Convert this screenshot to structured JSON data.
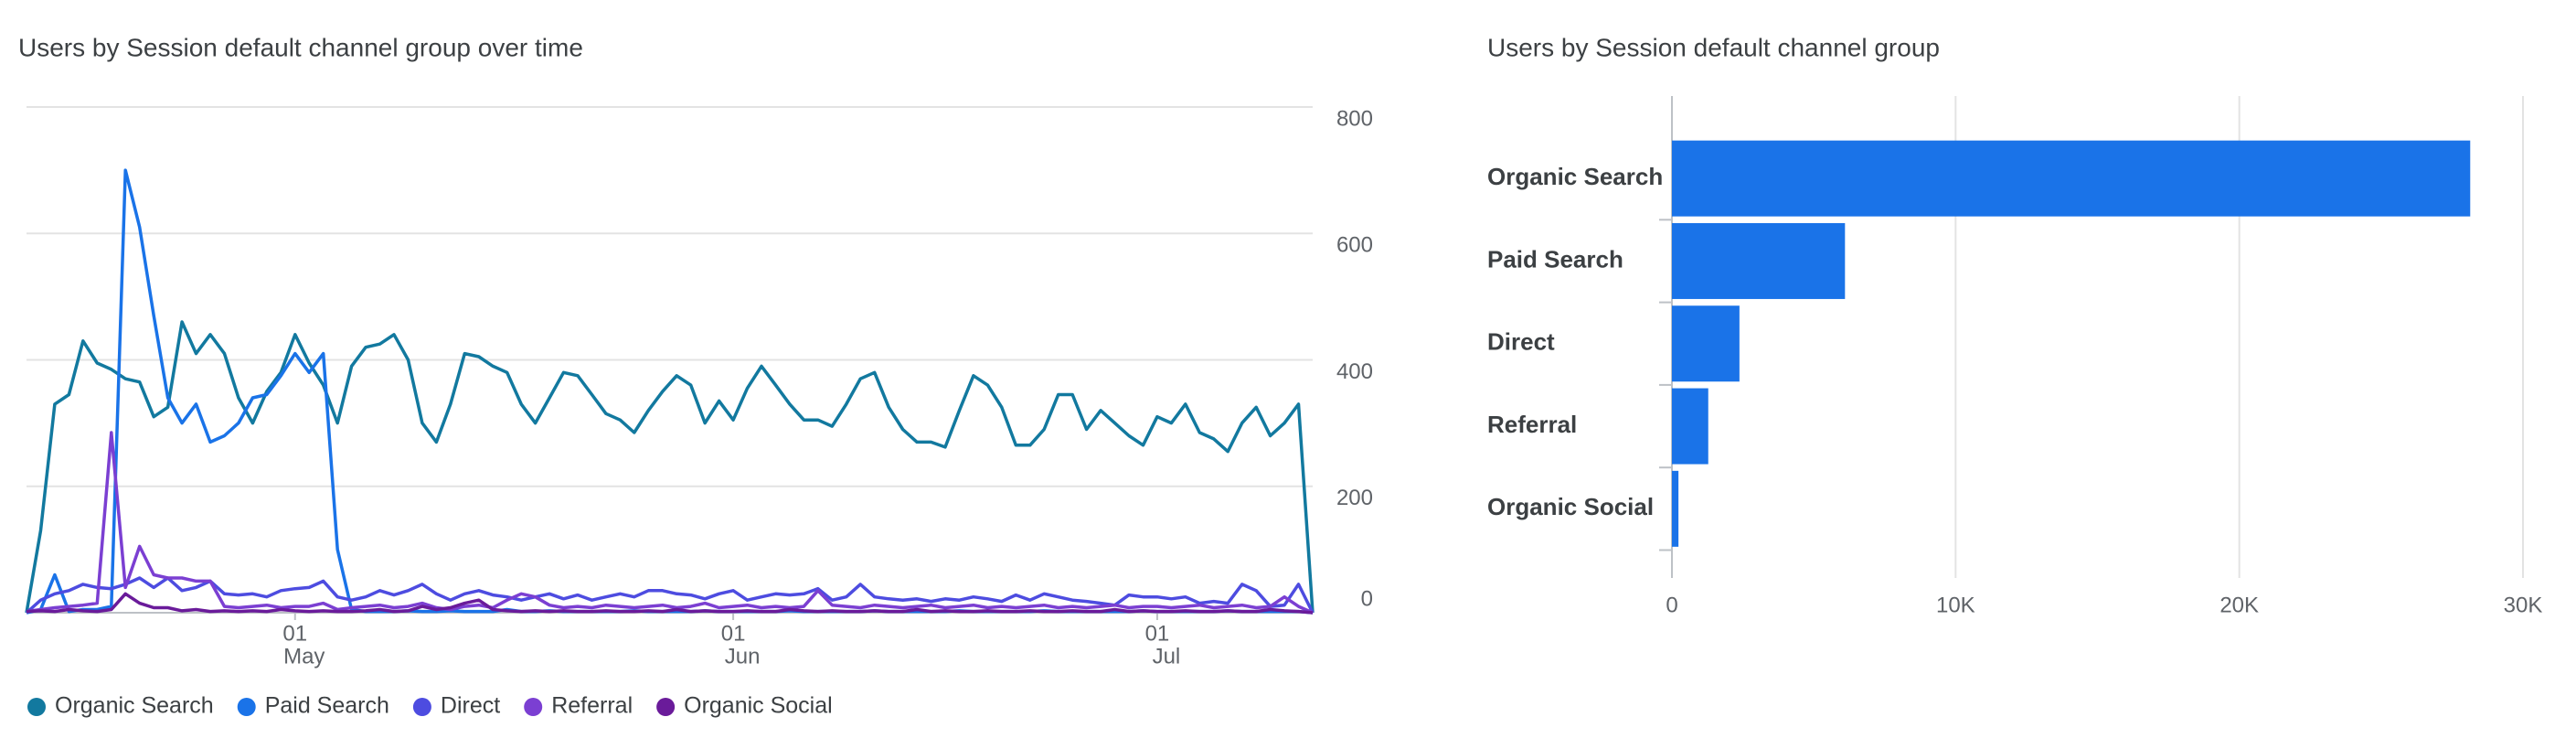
{
  "chart_data": [
    {
      "type": "line",
      "title": "Users by Session default channel group over time",
      "x": [
        0,
        1,
        2,
        3,
        4,
        5,
        6,
        7,
        8,
        9,
        10,
        11,
        12,
        13,
        14,
        15,
        16,
        17,
        18,
        19,
        20,
        21,
        22,
        23,
        24,
        25,
        26,
        27,
        28,
        29,
        30,
        31,
        32,
        33,
        34,
        35,
        36,
        37,
        38,
        39,
        40,
        41,
        42,
        43,
        44,
        45,
        46,
        47,
        48,
        49,
        50,
        51,
        52,
        53,
        54,
        55,
        56,
        57,
        58,
        59,
        60,
        61,
        62,
        63,
        64,
        65,
        66,
        67,
        68,
        69,
        70,
        71,
        72,
        73,
        74,
        75,
        76,
        77,
        78,
        79,
        80,
        81,
        82,
        83,
        84,
        85,
        86,
        87,
        88,
        89,
        90,
        91
      ],
      "xlim": [
        0,
        91
      ],
      "xticks": [
        {
          "value": 19,
          "label": "01"
        },
        {
          "value": 50,
          "label": "01"
        },
        {
          "value": 80,
          "label": "01"
        }
      ],
      "xtick_months": [
        "May",
        "Jun",
        "Jul"
      ],
      "ylim": [
        0,
        800
      ],
      "yticks": [
        0,
        200,
        400,
        600,
        800
      ],
      "grid": true,
      "series": [
        {
          "name": "Organic Search",
          "color": "#12799f",
          "values": [
            0,
            130,
            330,
            345,
            430,
            395,
            385,
            370,
            365,
            310,
            325,
            460,
            410,
            440,
            410,
            340,
            300,
            350,
            380,
            440,
            395,
            360,
            300,
            390,
            420,
            425,
            440,
            400,
            300,
            270,
            330,
            410,
            405,
            390,
            380,
            330,
            300,
            340,
            380,
            375,
            345,
            315,
            305,
            285,
            320,
            350,
            375,
            360,
            300,
            335,
            305,
            355,
            390,
            360,
            330,
            305,
            305,
            295,
            330,
            370,
            380,
            325,
            290,
            270,
            270,
            262,
            320,
            375,
            360,
            325,
            265,
            265,
            290,
            345,
            345,
            290,
            320,
            300,
            280,
            265,
            310,
            300,
            330,
            285,
            275,
            255,
            300,
            325,
            280,
            300,
            330,
            0
          ]
        },
        {
          "name": "Paid Search",
          "color": "#1a73e8",
          "values": [
            0,
            5,
            60,
            2,
            5,
            5,
            10,
            700,
            610,
            470,
            340,
            300,
            330,
            270,
            280,
            300,
            340,
            345,
            375,
            410,
            380,
            410,
            100,
            5,
            2,
            2,
            2,
            3,
            2,
            2,
            3,
            2,
            2,
            2,
            5,
            2,
            2,
            3,
            2,
            2,
            2,
            2,
            2,
            3,
            2,
            2,
            2,
            2,
            3,
            2,
            2,
            2,
            2,
            2,
            3,
            2,
            2,
            2,
            2,
            2,
            3,
            2,
            2,
            2,
            2,
            2,
            3,
            2,
            2,
            2,
            2,
            2,
            3,
            2,
            2,
            2,
            2,
            2,
            2,
            3,
            2,
            2,
            2,
            2,
            2,
            3,
            2,
            2,
            2,
            2,
            2,
            0
          ]
        },
        {
          "name": "Direct",
          "color": "#4d4ce0",
          "values": [
            0,
            20,
            30,
            35,
            45,
            40,
            38,
            45,
            55,
            40,
            55,
            35,
            40,
            50,
            30,
            28,
            30,
            25,
            35,
            38,
            40,
            50,
            25,
            20,
            25,
            35,
            28,
            35,
            45,
            30,
            20,
            30,
            35,
            28,
            25,
            20,
            25,
            30,
            22,
            28,
            20,
            25,
            30,
            25,
            35,
            35,
            30,
            28,
            22,
            30,
            35,
            20,
            25,
            30,
            28,
            30,
            38,
            20,
            25,
            45,
            25,
            22,
            20,
            22,
            18,
            22,
            20,
            25,
            22,
            18,
            28,
            20,
            30,
            25,
            20,
            18,
            15,
            12,
            28,
            25,
            25,
            22,
            25,
            15,
            18,
            15,
            45,
            35,
            10,
            12,
            45,
            0
          ]
        },
        {
          "name": "Referral",
          "color": "#7b3fd2",
          "values": [
            2,
            5,
            8,
            10,
            12,
            15,
            285,
            40,
            105,
            60,
            55,
            55,
            50,
            50,
            10,
            8,
            10,
            12,
            8,
            10,
            10,
            15,
            5,
            8,
            10,
            12,
            8,
            10,
            15,
            8,
            5,
            10,
            12,
            8,
            20,
            30,
            25,
            12,
            8,
            10,
            8,
            12,
            10,
            8,
            10,
            12,
            8,
            10,
            15,
            8,
            10,
            12,
            8,
            10,
            8,
            10,
            35,
            12,
            10,
            8,
            12,
            10,
            8,
            10,
            12,
            8,
            10,
            12,
            8,
            10,
            8,
            10,
            12,
            8,
            10,
            8,
            10,
            12,
            8,
            10,
            10,
            8,
            10,
            12,
            8,
            10,
            12,
            8,
            10,
            25,
            10,
            0
          ]
        },
        {
          "name": "Organic Social",
          "color": "#6a1b9a",
          "values": [
            2,
            3,
            2,
            5,
            3,
            2,
            5,
            30,
            15,
            8,
            8,
            3,
            5,
            2,
            3,
            2,
            3,
            2,
            5,
            3,
            2,
            3,
            2,
            2,
            3,
            5,
            2,
            3,
            10,
            5,
            8,
            15,
            20,
            5,
            3,
            2,
            3,
            2,
            3,
            2,
            2,
            3,
            2,
            2,
            3,
            2,
            5,
            2,
            3,
            2,
            2,
            3,
            2,
            2,
            5,
            3,
            2,
            3,
            2,
            2,
            3,
            2,
            2,
            5,
            2,
            3,
            2,
            2,
            3,
            2,
            2,
            3,
            2,
            2,
            3,
            2,
            2,
            5,
            2,
            3,
            2,
            2,
            3,
            2,
            2,
            3,
            2,
            2,
            5,
            3,
            2,
            0
          ]
        }
      ]
    },
    {
      "type": "bar",
      "orientation": "horizontal",
      "title": "Users by Session default channel group",
      "categories": [
        "Organic Search",
        "Paid Search",
        "Direct",
        "Referral",
        "Organic Social"
      ],
      "values": [
        28140,
        6100,
        2380,
        1280,
        230
      ],
      "color": "#1a73e8",
      "xlim": [
        0,
        30000
      ],
      "xticks": [
        0,
        {
          "value": 10000,
          "label": "10K"
        },
        {
          "value": 20000,
          "label": "20K"
        },
        {
          "value": 30000,
          "label": "30K"
        }
      ],
      "grid": true
    }
  ]
}
